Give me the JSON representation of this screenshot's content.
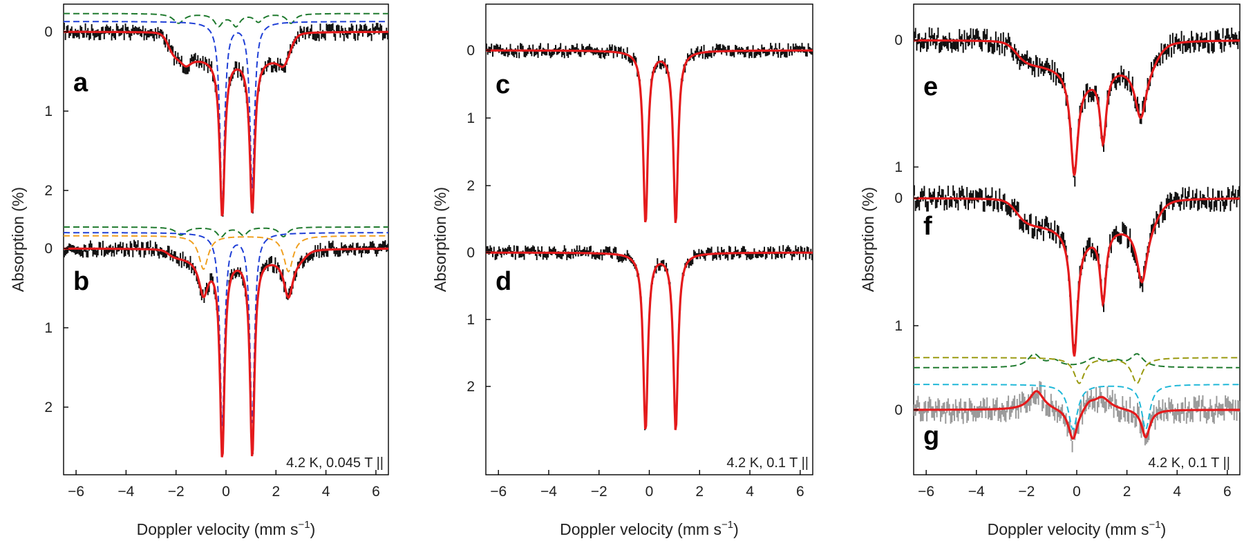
{
  "figure": {
    "xlabel_text": "Doppler velocity (mm s",
    "xlabel_sup": "−1",
    "xlabel_close": ")",
    "ylabel": "Absorption (%)"
  },
  "colors": {
    "data": "#111111",
    "data_difference": "#9a9a9a",
    "fit": "#e41a1c",
    "component_blue": "#1f3fd6",
    "component_green": "#1f7a2e",
    "component_orange": "#f0a020",
    "component_olive": "#9a9a10",
    "component_cyan": "#20b8d8"
  },
  "chart_data": [
    {
      "type": "line",
      "panels": [
        "a",
        "b"
      ],
      "annotation": "4.2 K, 0.045 T ||",
      "xlim": [
        -6.5,
        6.5
      ],
      "x_ticks": [
        "−6",
        "−4",
        "−2",
        "0",
        "2",
        "4",
        "6"
      ],
      "xlabel": "Doppler velocity (mm s−1)",
      "ylabel": "Absorption (%)",
      "y_inverted": true,
      "traces": {
        "a": {
          "y_ticks": [
            "0",
            "1",
            "2"
          ],
          "fit_lines": [
            {
              "center": -0.15,
              "depth": 2.1,
              "width": 0.25
            },
            {
              "center": 1.05,
              "depth": 2.05,
              "width": 0.25
            }
          ],
          "sub_spectrum_steps": [
            {
              "from": -2.3,
              "to": 2.6,
              "depth": 0.35
            }
          ],
          "components": [
            {
              "color": "blue",
              "style": "dashed",
              "baseline_offset": -0.12,
              "lines": [
                {
                  "center": -0.15,
                  "depth": 2.3
                },
                {
                  "center": 1.05,
                  "depth": 2.1
                }
              ]
            },
            {
              "color": "green",
              "style": "dashed",
              "baseline_offset": -0.2,
              "features": "weak magnetic sextet, depth ≈ 0.2"
            }
          ]
        },
        "b": {
          "y_ticks": [
            "0",
            "1",
            "2"
          ],
          "fit_lines": [
            {
              "center": -0.15,
              "depth": 2.55,
              "width": 0.22
            },
            {
              "center": 1.05,
              "depth": 2.55,
              "width": 0.22
            },
            {
              "center": -0.9,
              "depth": 0.55
            },
            {
              "center": 2.5,
              "depth": 0.6
            }
          ],
          "components": [
            {
              "color": "blue",
              "style": "dashed",
              "lines": [
                {
                  "center": -0.15,
                  "depth": 2.45
                },
                {
                  "center": 1.05,
                  "depth": 2.4
                }
              ]
            },
            {
              "color": "orange",
              "style": "dashed",
              "lines": [
                {
                  "center": -0.9,
                  "depth": 0.4
                },
                {
                  "center": 2.5,
                  "depth": 0.45
                }
              ]
            },
            {
              "color": "green",
              "style": "dashed",
              "features": "weak magnetic sextet, depth ≈ 0.15"
            }
          ]
        }
      }
    },
    {
      "type": "line",
      "panels": [
        "c",
        "d"
      ],
      "annotation": "4.2 K, 0.1 T ||",
      "xlim": [
        -6.5,
        6.5
      ],
      "x_ticks": [
        "−6",
        "−4",
        "−2",
        "0",
        "2",
        "4",
        "6"
      ],
      "xlabel": "Doppler velocity (mm s−1)",
      "ylabel": "Absorption (%)",
      "y_inverted": true,
      "traces": {
        "c": {
          "y_ticks": [
            "0",
            "1",
            "2"
          ],
          "fit_lines": [
            {
              "center": -0.15,
              "depth": 2.6,
              "width": 0.22
            },
            {
              "center": 1.05,
              "depth": 2.6,
              "width": 0.22
            }
          ]
        },
        "d": {
          "y_ticks": [
            "0",
            "1",
            "2"
          ],
          "fit_lines": [
            {
              "center": -0.15,
              "depth": 2.7,
              "width": 0.22
            },
            {
              "center": 1.05,
              "depth": 2.7,
              "width": 0.22
            }
          ]
        }
      }
    },
    {
      "type": "line",
      "panels": [
        "e",
        "f",
        "g"
      ],
      "annotation": "4.2 K, 0.1 T ||",
      "xlim": [
        -6.5,
        6.5
      ],
      "x_ticks": [
        "−6",
        "−4",
        "−2",
        "0",
        "2",
        "4",
        "6"
      ],
      "xlabel": "Doppler velocity (mm s−1)",
      "ylabel": "Absorption (%)",
      "y_inverted": true,
      "traces": {
        "e": {
          "y_ticks": [
            "0",
            "1"
          ],
          "fit_lines": [
            {
              "center": -0.1,
              "depth": 0.95,
              "width": 0.3
            },
            {
              "center": 1.05,
              "depth": 0.72
            },
            {
              "center": 2.55,
              "depth": 0.55
            },
            {
              "center": -1.6,
              "depth": 0.15
            }
          ]
        },
        "f": {
          "y_ticks": [
            "0",
            "1"
          ],
          "fit_lines": [
            {
              "center": -0.1,
              "depth": 1.1,
              "width": 0.3
            },
            {
              "center": 1.05,
              "depth": 0.68
            },
            {
              "center": 2.6,
              "depth": 0.62
            },
            {
              "center": -1.5,
              "depth": 0.12
            }
          ]
        },
        "g": {
          "y_ticks": [
            "0"
          ],
          "description": "difference spectrum",
          "fit_lines": [
            {
              "center": -0.15,
              "depth": 0.22
            },
            {
              "center": 2.75,
              "depth": 0.2
            },
            {
              "center": -1.6,
              "depth": -0.15
            },
            {
              "center": 1.0,
              "depth": -0.1
            }
          ],
          "components": [
            {
              "color": "cyan",
              "style": "dashed",
              "lines": [
                {
                  "center": -0.15,
                  "depth": 0.35
                },
                {
                  "center": 2.75,
                  "depth": 0.35
                }
              ]
            },
            {
              "color": "olive",
              "style": "dashed",
              "lines": [
                {
                  "center": 0.1,
                  "depth": 0.2
                },
                {
                  "center": 2.4,
                  "depth": 0.2
                }
              ]
            },
            {
              "color": "green",
              "style": "dashed",
              "features": "inverted sextet, height ≈ 0.17"
            }
          ]
        }
      }
    }
  ]
}
